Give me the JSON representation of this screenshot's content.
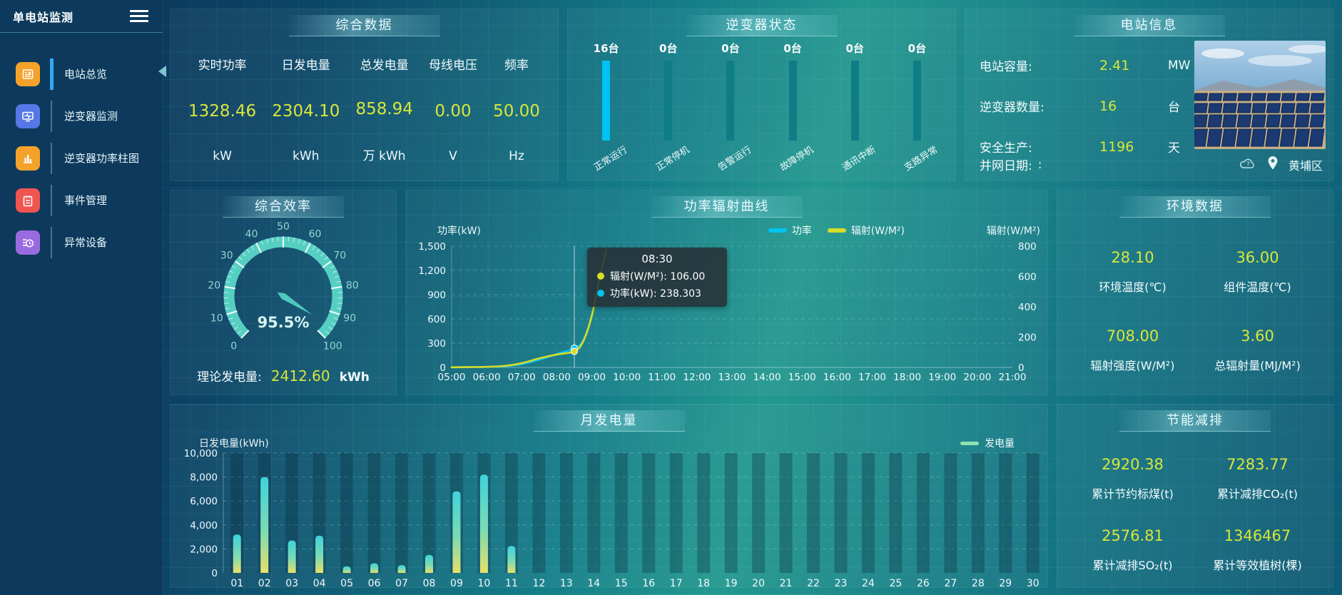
{
  "app": {
    "title": "单电站监测"
  },
  "sidebar": {
    "items": [
      {
        "label": "电站总览",
        "icon": "overview-icon",
        "icon_color": "#f5a22b",
        "active": true
      },
      {
        "label": "逆变器监测",
        "icon": "inverter-monitor-icon",
        "icon_color": "#5577e8",
        "active": false
      },
      {
        "label": "逆变器功率柱图",
        "icon": "power-bars-icon",
        "icon_color": "#f5a22b",
        "active": false
      },
      {
        "label": "事件管理",
        "icon": "event-icon",
        "icon_color": "#f05450",
        "active": false
      },
      {
        "label": "异常设备",
        "icon": "abnormal-icon",
        "icon_color": "#9a6be0",
        "active": false
      }
    ]
  },
  "panels": {
    "summary": {
      "title": "综合数据",
      "metrics": [
        {
          "label": "实时功率",
          "value": "1328.46",
          "unit": "kW"
        },
        {
          "label": "日发电量",
          "value": "2304.10",
          "unit": "kWh"
        },
        {
          "label": "总发电量",
          "value": "858.94",
          "unit": "万 kWh"
        },
        {
          "label": "母线电压",
          "value": "0.00",
          "unit": "V"
        },
        {
          "label": "频率",
          "value": "50.00",
          "unit": "Hz"
        }
      ]
    },
    "inverter_status": {
      "title": "逆变器状态",
      "items": [
        {
          "count": "16台",
          "label": "正常运行",
          "highlight": true
        },
        {
          "count": "0台",
          "label": "正常停机",
          "highlight": false
        },
        {
          "count": "0台",
          "label": "告警运行",
          "highlight": false
        },
        {
          "count": "0台",
          "label": "故障停机",
          "highlight": false
        },
        {
          "count": "0台",
          "label": "通讯中断",
          "highlight": false
        },
        {
          "count": "0台",
          "label": "支路异常",
          "highlight": false
        }
      ],
      "bar_color": "#00c2f4",
      "track_color": "#0f7d86"
    },
    "station_info": {
      "title": "电站信息",
      "rows": [
        {
          "label": "电站容量:",
          "value": "2.41",
          "unit": "MW"
        },
        {
          "label": "逆变器数量:",
          "value": "16",
          "unit": "台"
        },
        {
          "label": "安全生产:",
          "value": "1196",
          "unit": "天"
        }
      ],
      "grid_date_label": "并网日期:",
      "grid_date_value": ":",
      "location": "黄埔区"
    },
    "efficiency": {
      "title": "综合效率",
      "footer_label": "理论发电量:",
      "footer_value": "2412.60",
      "footer_unit": "kWh"
    },
    "power_curve": {
      "title": "功率辐射曲线"
    },
    "environment": {
      "title": "环境数据",
      "metrics": [
        {
          "value": "28.10",
          "label": "环境温度(℃)"
        },
        {
          "value": "36.00",
          "label": "组件温度(℃)"
        },
        {
          "value": "708.00",
          "label": "辐射强度(W/M²)"
        },
        {
          "value": "3.60",
          "label": "总辐射量(MJ/M²)"
        }
      ]
    },
    "monthly": {
      "title": "月发电量"
    },
    "saving": {
      "title": "节能减排",
      "metrics": [
        {
          "value": "2920.38",
          "label": "累计节约标煤(t)"
        },
        {
          "value": "7283.77",
          "label": "累计减排CO₂(t)"
        },
        {
          "value": "2576.81",
          "label": "累计减排SO₂(t)"
        },
        {
          "value": "1346467",
          "label": "累计等效植树(棵)"
        }
      ]
    }
  },
  "chart_data": [
    {
      "type": "gauge",
      "title": "综合效率",
      "value": 95.5,
      "display": "95.5%",
      "min": 0,
      "max": 100,
      "major_tick_step": 10,
      "band_color": "#56cfc3",
      "label_color": "#8ed8d2"
    },
    {
      "type": "line",
      "title": "功率辐射曲线",
      "x_ticks": [
        "05:00",
        "06:00",
        "07:00",
        "08:00",
        "09:00",
        "10:00",
        "11:00",
        "12:00",
        "13:00",
        "14:00",
        "15:00",
        "16:00",
        "17:00",
        "18:00",
        "19:00",
        "20:00",
        "21:00"
      ],
      "x_range_hours": [
        5,
        21
      ],
      "left_axis": {
        "label": "功率(kW)",
        "min": 0,
        "max": 1500,
        "tick_step": 300
      },
      "right_axis": {
        "label": "辐射(W/M²)",
        "min": 0,
        "max": 800,
        "tick_step": 200
      },
      "legend": [
        {
          "label": "功率",
          "color": "#00c4f2"
        },
        {
          "label": "辐射(W/M²)",
          "color": "#d6dc28"
        }
      ],
      "series": [
        {
          "name": "功率",
          "axis": "left",
          "color": "#00c4f2",
          "points": [
            [
              "05:00",
              2
            ],
            [
              "05:30",
              3
            ],
            [
              "06:00",
              6
            ],
            [
              "06:30",
              15
            ],
            [
              "07:00",
              40
            ],
            [
              "07:30",
              95
            ],
            [
              "08:00",
              165
            ],
            [
              "08:30",
              238.3
            ],
            [
              "08:45",
              330
            ],
            [
              "09:00",
              640
            ],
            [
              "09:15",
              1180
            ],
            [
              "09:25",
              1430
            ]
          ]
        },
        {
          "name": "辐射(W/M²)",
          "axis": "right",
          "color": "#d6dc28",
          "points": [
            [
              "05:00",
              1
            ],
            [
              "05:30",
              2
            ],
            [
              "06:00",
              4
            ],
            [
              "06:30",
              10
            ],
            [
              "07:00",
              28
            ],
            [
              "07:30",
              60
            ],
            [
              "08:00",
              85
            ],
            [
              "08:30",
              106
            ],
            [
              "08:45",
              170
            ],
            [
              "09:00",
              340
            ],
            [
              "09:15",
              620
            ],
            [
              "09:25",
              780
            ]
          ]
        }
      ],
      "pointer_time": "08:30",
      "tooltip": {
        "time": "08:30",
        "rows": [
          {
            "marker_color": "#d6dc28",
            "label": "辐射(W/M²)",
            "value": "106.00"
          },
          {
            "marker_color": "#00c4f2",
            "label": "功率(kW)",
            "value": "238.303"
          }
        ]
      }
    },
    {
      "type": "bar",
      "title": "月发电量",
      "ylabel": "日发电量(kWh)",
      "legend": "发电量",
      "legend_color": "#8ce3b0",
      "categories": [
        "01",
        "02",
        "03",
        "04",
        "05",
        "06",
        "07",
        "08",
        "09",
        "10",
        "11",
        "12",
        "13",
        "14",
        "15",
        "16",
        "17",
        "18",
        "19",
        "20",
        "21",
        "22",
        "23",
        "24",
        "25",
        "26",
        "27",
        "28",
        "29",
        "30"
      ],
      "values": [
        3200,
        8000,
        2700,
        3100,
        550,
        800,
        650,
        1500,
        6800,
        8200,
        2250,
        0,
        0,
        0,
        0,
        0,
        0,
        0,
        0,
        0,
        0,
        0,
        0,
        0,
        0,
        0,
        0,
        0,
        0,
        0
      ],
      "ylim": [
        0,
        10000
      ],
      "ytick_step": 2000,
      "bar_gradient": [
        "#3fd2dc",
        "#7adbb4",
        "#e8e06a"
      ]
    }
  ]
}
